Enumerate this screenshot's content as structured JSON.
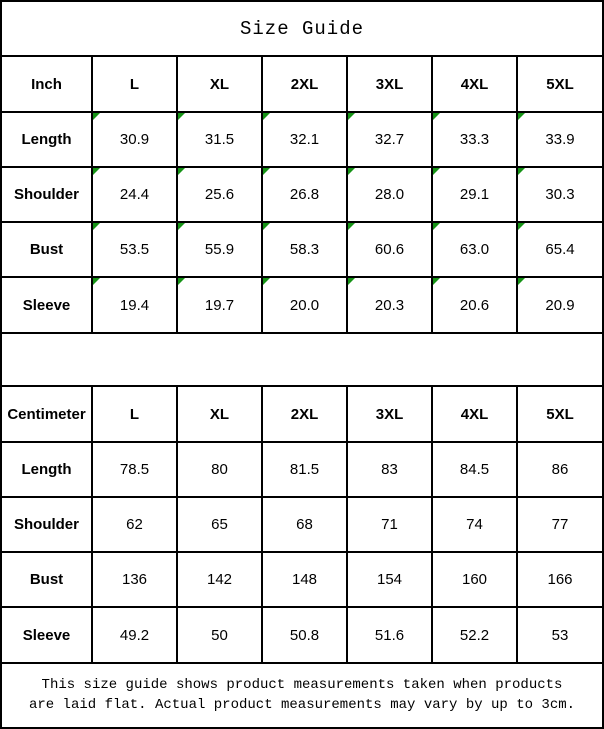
{
  "page": {
    "title": "Size Guide",
    "footnote": "This size guide shows product measurements taken when products are laid flat. Actual product measurements may vary by up to 3cm."
  },
  "colors": {
    "flag_green": "#169416",
    "border": "#000000",
    "text": "#000000",
    "background": "#ffffff"
  },
  "icons": {
    "corner_flag": "green-triangle-top-left"
  },
  "chart_data": [
    {
      "type": "table",
      "unit_header": "Inch",
      "size_columns": [
        "L",
        "XL",
        "2XL",
        "3XL",
        "4XL",
        "5XL"
      ],
      "rows": [
        {
          "label": "Length",
          "values": [
            "30.9",
            "31.5",
            "32.1",
            "32.7",
            "33.3",
            "33.9"
          ]
        },
        {
          "label": "Shoulder",
          "values": [
            "24.4",
            "25.6",
            "26.8",
            "28.0",
            "29.1",
            "30.3"
          ]
        },
        {
          "label": "Bust",
          "values": [
            "53.5",
            "55.9",
            "58.3",
            "60.6",
            "63.0",
            "65.4"
          ]
        },
        {
          "label": "Sleeve",
          "values": [
            "19.4",
            "19.7",
            "20.0",
            "20.3",
            "20.6",
            "20.9"
          ]
        }
      ],
      "cell_flags": "all-value-cells-flagged-green"
    },
    {
      "type": "table",
      "unit_header": "Centimeter",
      "size_columns": [
        "L",
        "XL",
        "2XL",
        "3XL",
        "4XL",
        "5XL"
      ],
      "rows": [
        {
          "label": "Length",
          "values": [
            "78.5",
            "80",
            "81.5",
            "83",
            "84.5",
            "86"
          ]
        },
        {
          "label": "Shoulder",
          "values": [
            "62",
            "65",
            "68",
            "71",
            "74",
            "77"
          ]
        },
        {
          "label": "Bust",
          "values": [
            "136",
            "142",
            "148",
            "154",
            "160",
            "166"
          ]
        },
        {
          "label": "Sleeve",
          "values": [
            "49.2",
            "50",
            "50.8",
            "51.6",
            "52.2",
            "53"
          ]
        }
      ],
      "cell_flags": "none"
    }
  ]
}
